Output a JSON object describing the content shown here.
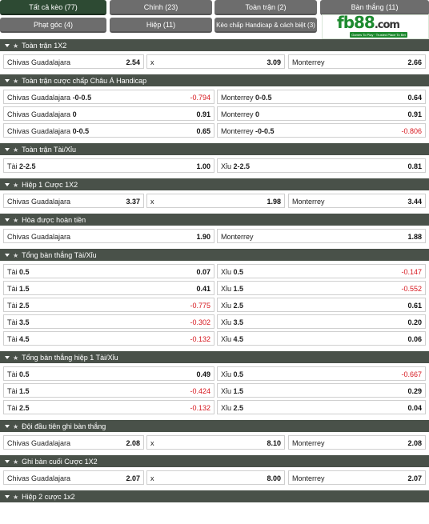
{
  "tabs": [
    {
      "label": "Tất cả kèo (77)",
      "active": true
    },
    {
      "label": "Chính (23)"
    },
    {
      "label": "Toàn trận (2)"
    },
    {
      "label": "Bàn thắng (11)"
    },
    {
      "label": "Phạt góc (4)"
    },
    {
      "label": "Hiệp (11)"
    },
    {
      "label": "Kèo chấp Handicap & cách biệt (3)"
    }
  ],
  "logo": {
    "name": "fb88",
    "suffix": ".com",
    "tagline": "Games To Play · Trusted Place To Bet"
  },
  "sections": [
    {
      "title": "Toàn trận 1X2",
      "rows": [
        [
          {
            "label": "Chivas Guadalajara",
            "value": "2.54"
          },
          {
            "label": "x",
            "value": "3.09"
          },
          {
            "label": "Monterrey",
            "value": "2.66"
          }
        ]
      ]
    },
    {
      "title": "Toàn trận cược chấp Châu Á Handicap",
      "rows": [
        [
          {
            "label": "Chivas Guadalajara",
            "line": "-0-0.5",
            "value": "-0.794",
            "neg": true
          },
          {
            "label": "Monterrey",
            "line": "0-0.5",
            "value": "0.64"
          }
        ],
        [
          {
            "label": "Chivas Guadalajara",
            "line": "0",
            "value": "0.91"
          },
          {
            "label": "Monterrey",
            "line": "0",
            "value": "0.91"
          }
        ],
        [
          {
            "label": "Chivas Guadalajara",
            "line": "0-0.5",
            "value": "0.65"
          },
          {
            "label": "Monterrey",
            "line": "-0-0.5",
            "value": "-0.806",
            "neg": true
          }
        ]
      ]
    },
    {
      "title": "Toàn trận Tài/Xỉu",
      "rows": [
        [
          {
            "label": "Tài",
            "line": "2-2.5",
            "value": "1.00"
          },
          {
            "label": "Xỉu",
            "line": "2-2.5",
            "value": "0.81"
          }
        ]
      ]
    },
    {
      "title": "Hiệp 1 Cược 1X2",
      "rows": [
        [
          {
            "label": "Chivas Guadalajara",
            "value": "3.37"
          },
          {
            "label": "x",
            "value": "1.98"
          },
          {
            "label": "Monterrey",
            "value": "3.44"
          }
        ]
      ]
    },
    {
      "title": "Hòa được hoàn tiền",
      "rows": [
        [
          {
            "label": "Chivas Guadalajara",
            "value": "1.90"
          },
          {
            "label": "Monterrey",
            "value": "1.88"
          }
        ]
      ]
    },
    {
      "title": "Tổng bàn thắng Tài/Xỉu",
      "rows": [
        [
          {
            "label": "Tài",
            "line": "0.5",
            "value": "0.07"
          },
          {
            "label": "Xỉu",
            "line": "0.5",
            "value": "-0.147",
            "neg": true
          }
        ],
        [
          {
            "label": "Tài",
            "line": "1.5",
            "value": "0.41"
          },
          {
            "label": "Xỉu",
            "line": "1.5",
            "value": "-0.552",
            "neg": true
          }
        ],
        [
          {
            "label": "Tài",
            "line": "2.5",
            "value": "-0.775",
            "neg": true
          },
          {
            "label": "Xỉu",
            "line": "2.5",
            "value": "0.61"
          }
        ],
        [
          {
            "label": "Tài",
            "line": "3.5",
            "value": "-0.302",
            "neg": true
          },
          {
            "label": "Xỉu",
            "line": "3.5",
            "value": "0.20"
          }
        ],
        [
          {
            "label": "Tài",
            "line": "4.5",
            "value": "-0.132",
            "neg": true
          },
          {
            "label": "Xỉu",
            "line": "4.5",
            "value": "0.06"
          }
        ]
      ]
    },
    {
      "title": "Tổng bàn thắng hiệp 1 Tài/Xỉu",
      "rows": [
        [
          {
            "label": "Tài",
            "line": "0.5",
            "value": "0.49"
          },
          {
            "label": "Xỉu",
            "line": "0.5",
            "value": "-0.667",
            "neg": true
          }
        ],
        [
          {
            "label": "Tài",
            "line": "1.5",
            "value": "-0.424",
            "neg": true
          },
          {
            "label": "Xỉu",
            "line": "1.5",
            "value": "0.29"
          }
        ],
        [
          {
            "label": "Tài",
            "line": "2.5",
            "value": "-0.132",
            "neg": true
          },
          {
            "label": "Xỉu",
            "line": "2.5",
            "value": "0.04"
          }
        ]
      ]
    },
    {
      "title": "Đội đầu tiên ghi bàn thắng",
      "rows": [
        [
          {
            "label": "Chivas Guadalajara",
            "value": "2.08"
          },
          {
            "label": "x",
            "value": "8.10"
          },
          {
            "label": "Monterrey",
            "value": "2.08"
          }
        ]
      ]
    },
    {
      "title": "Ghi bàn cuối Cược 1X2",
      "rows": [
        [
          {
            "label": "Chivas Guadalajara",
            "value": "2.07"
          },
          {
            "label": "x",
            "value": "8.00"
          },
          {
            "label": "Monterrey",
            "value": "2.07"
          }
        ]
      ]
    },
    {
      "title": "Hiệp 2 cược 1x2",
      "rows": []
    }
  ]
}
